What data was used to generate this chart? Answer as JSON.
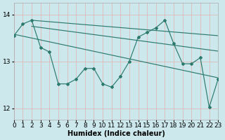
{
  "xlabel": "Humidex (Indice chaleur)",
  "bg_color": "#cce8ec",
  "grid_color": "#c8e0e4",
  "line_color": "#2d7a6e",
  "xlim": [
    0,
    23
  ],
  "ylim": [
    11.75,
    14.25
  ],
  "yticks": [
    12,
    13,
    14
  ],
  "xticks": [
    0,
    1,
    2,
    3,
    4,
    5,
    6,
    7,
    8,
    9,
    10,
    11,
    12,
    13,
    14,
    15,
    16,
    17,
    18,
    19,
    20,
    21,
    22,
    23
  ],
  "y_jagged": [
    13.55,
    13.8,
    13.88,
    13.3,
    13.2,
    12.52,
    12.52,
    12.62,
    12.85,
    12.85,
    12.52,
    12.45,
    12.68,
    13.0,
    13.52,
    13.62,
    13.72,
    13.88,
    13.38,
    12.95,
    12.95,
    13.08,
    12.02,
    12.62
  ],
  "trend_upper1_start": 13.88,
  "trend_upper1_end": 13.55,
  "trend_upper2_start": 13.88,
  "trend_upper2_end": 13.22,
  "trend_lower_start": 13.62,
  "trend_lower_end": 12.65
}
